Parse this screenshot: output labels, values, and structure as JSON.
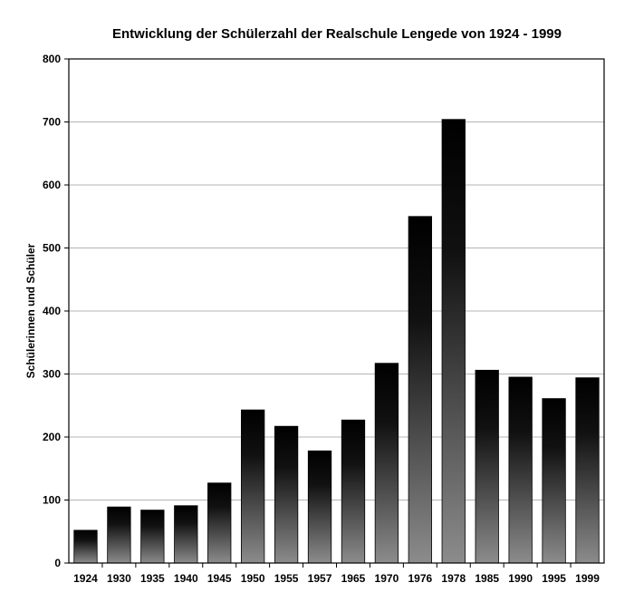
{
  "chart_data": {
    "type": "bar",
    "title": "Entwicklung der Schülerzahl der Realschule Lengede von 1924 - 1999",
    "xlabel": "",
    "ylabel": "Schülerinnen und Schüler",
    "categories": [
      "1924",
      "1930",
      "1935",
      "1940",
      "1945",
      "1950",
      "1955",
      "1957",
      "1965",
      "1970",
      "1976",
      "1978",
      "1985",
      "1990",
      "1995",
      "1999"
    ],
    "values": [
      52,
      89,
      84,
      91,
      127,
      243,
      217,
      178,
      227,
      317,
      550,
      704,
      306,
      295,
      261,
      294
    ],
    "ylim": [
      0,
      800
    ],
    "yticks": [
      0,
      100,
      200,
      300,
      400,
      500,
      600,
      700,
      800
    ],
    "grid": true,
    "legend": "none",
    "colors": {
      "bar_top": "#000000",
      "bar_bottom": "#8c8c8c",
      "grid": "#b4b4b4",
      "axis": "#000000"
    }
  }
}
